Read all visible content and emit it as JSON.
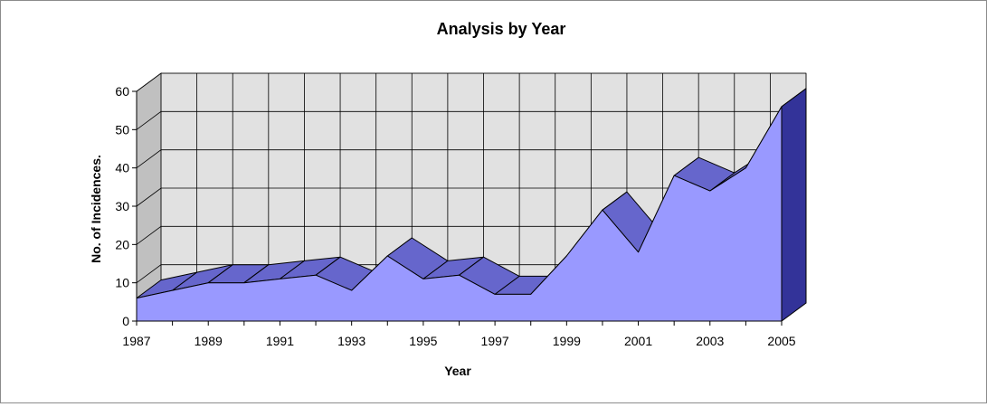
{
  "chart_data": {
    "type": "area",
    "title": "Analysis by Year",
    "xlabel": "Year",
    "ylabel": "No. of Incidences.",
    "x": [
      1987,
      1988,
      1989,
      1990,
      1991,
      1992,
      1993,
      1994,
      1995,
      1996,
      1997,
      1998,
      1999,
      2000,
      2001,
      2002,
      2003,
      2004,
      2005
    ],
    "x_tick_labels": [
      "1987",
      "1989",
      "1991",
      "1993",
      "1995",
      "1997",
      "1999",
      "2001",
      "2003",
      "2005"
    ],
    "y_tick_labels": [
      "0",
      "10",
      "20",
      "30",
      "40",
      "50",
      "60"
    ],
    "series": [
      {
        "values": [
          6,
          8,
          10,
          10,
          11,
          12,
          8,
          17,
          11,
          12,
          7,
          7,
          17,
          29,
          18,
          38,
          34,
          40,
          56
        ]
      }
    ],
    "ylim": [
      0,
      60
    ],
    "grid": true,
    "legend": "none",
    "style": "3d",
    "colors": {
      "area_front": "#9999ff",
      "area_top": "#6666cc",
      "area_side": "#333399",
      "wall": "#e1e1e1",
      "grid": "#000000"
    }
  }
}
